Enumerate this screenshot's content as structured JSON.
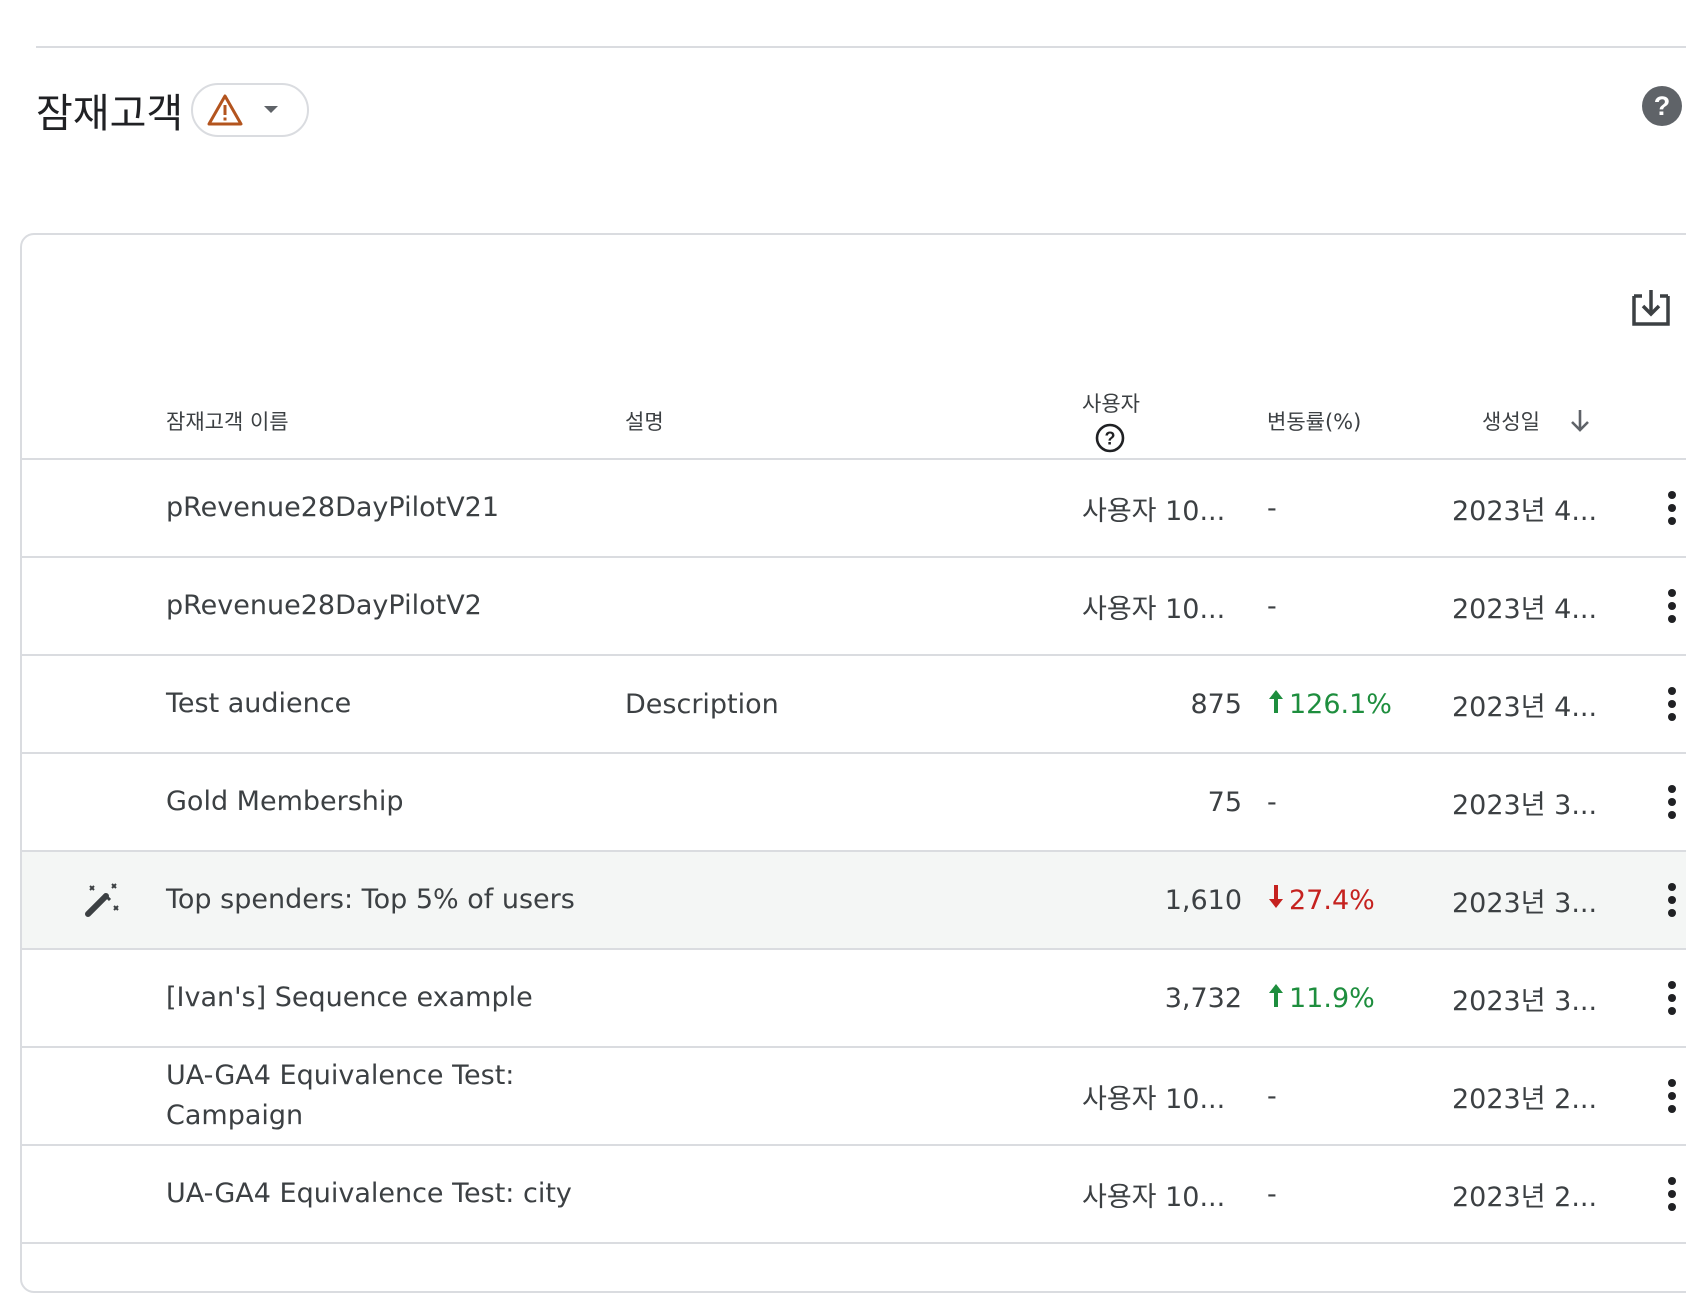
{
  "header": {
    "title": "잠재고객"
  },
  "table": {
    "columns": {
      "name": "잠재고객 이름",
      "description": "설명",
      "users": "사용자",
      "change": "변동률(%)",
      "created": "생성일"
    },
    "rows": [
      {
        "name": "pRevenue28DayPilotV21",
        "description": "",
        "users": "사용자 10...",
        "change": "-",
        "trend": "none",
        "created": "2023년 4..."
      },
      {
        "name": "pRevenue28DayPilotV2",
        "description": "",
        "users": "사용자 10...",
        "change": "-",
        "trend": "none",
        "created": "2023년 4..."
      },
      {
        "name": "Test audience",
        "description": "Description",
        "users": "875",
        "change": "126.1%",
        "trend": "up",
        "created": "2023년 4..."
      },
      {
        "name": "Gold Membership",
        "description": "",
        "users": "75",
        "change": "-",
        "trend": "none",
        "created": "2023년 3..."
      },
      {
        "name": "Top spenders: Top 5% of users",
        "description": "",
        "users": "1,610",
        "change": "27.4%",
        "trend": "down",
        "created": "2023년 3...",
        "icon": "magic-wand-icon"
      },
      {
        "name": "[Ivan's] Sequence example",
        "description": "",
        "users": "3,732",
        "change": "11.9%",
        "trend": "up",
        "created": "2023년 3..."
      },
      {
        "name": "UA-GA4 Equivalence Test: Campaign",
        "description": "",
        "users": "사용자 10...",
        "change": "-",
        "trend": "none",
        "created": "2023년 2..."
      },
      {
        "name": "UA-GA4 Equivalence Test: city",
        "description": "",
        "users": "사용자 10...",
        "change": "-",
        "trend": "none",
        "created": "2023년 2..."
      }
    ]
  },
  "icons": {
    "warning": "warning-icon",
    "dropdown": "caret-down-icon",
    "help": "help-icon",
    "download": "download-icon",
    "sort": "arrow-down-icon",
    "row_menu": "more-vert-icon"
  },
  "colors": {
    "positive": "#1e8e3e",
    "negative": "#c5221f",
    "warning": "#b3541e",
    "highlight_row": "#f4f6f5"
  }
}
